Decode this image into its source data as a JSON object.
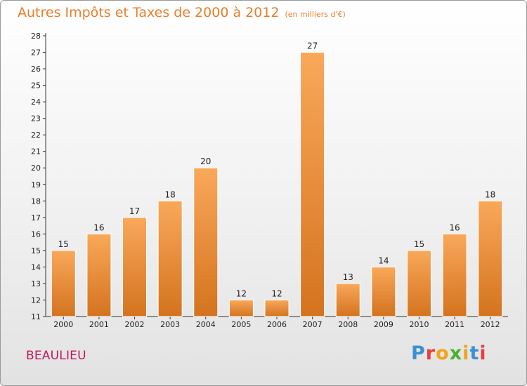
{
  "header": {
    "title": "Autres Impôts et Taxes de 2000 à 2012",
    "subtitle": "(en milliers d'€)"
  },
  "footer": {
    "city": "BEAULIEU",
    "logo": "Proxiti"
  },
  "colors": {
    "title": "#e87e2a",
    "city": "#c0185b",
    "bar_light": "#f9a85a",
    "bar_dark": "#d4731f"
  },
  "chart_data": {
    "type": "bar",
    "categories": [
      "2000",
      "2001",
      "2002",
      "2003",
      "2004",
      "2005",
      "2006",
      "2007",
      "2008",
      "2009",
      "2010",
      "2011",
      "2012"
    ],
    "values": [
      15,
      16,
      17,
      18,
      20,
      12,
      12,
      27,
      13,
      14,
      15,
      16,
      18
    ],
    "title": "Autres Impôts et Taxes de 2000 à 2012",
    "subtitle": "(en milliers d'€)",
    "ylim": [
      11,
      28
    ],
    "yticks": [
      11,
      12,
      13,
      14,
      15,
      16,
      17,
      18,
      19,
      20,
      21,
      22,
      23,
      24,
      25,
      26,
      27,
      28
    ],
    "grid": false,
    "legend": "none"
  }
}
